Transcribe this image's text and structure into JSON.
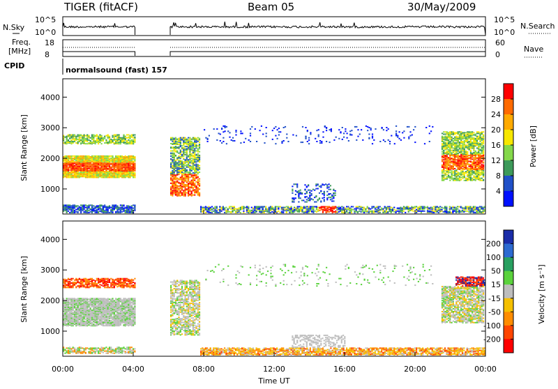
{
  "header": {
    "station": "TIGER (fitACF)",
    "beam": "Beam 05",
    "date": "30/May/2009"
  },
  "top_panel": {
    "left_label": "N.Sky",
    "right_label": "N.Search",
    "left_ticks": [
      "10^5",
      "10^0"
    ],
    "right_ticks": [
      "10^5",
      "10^0"
    ]
  },
  "freq_panel": {
    "left_label_line1": "Freq.",
    "left_label_line2": "[MHz]",
    "right_label": "Nave",
    "left_ticks": [
      "18",
      "8"
    ],
    "right_ticks": [
      "60",
      "0"
    ]
  },
  "cpid": {
    "label": "CPID",
    "value": "normalsound (fast) 157"
  },
  "chart_data": [
    {
      "type": "heatmap",
      "quantity": "Power",
      "ylabel": "Slant Range [km]",
      "xlabel": "",
      "ylim": [
        180,
        4600
      ],
      "xlim": [
        0,
        24
      ],
      "yticks": [
        "1000",
        "2000",
        "3000",
        "4000"
      ],
      "colorbar": {
        "label": "Power [dB]",
        "ticks": [
          "28",
          "24",
          "20",
          "16",
          "12",
          "8",
          "4"
        ],
        "colors": [
          "#ff0000",
          "#ff6a00",
          "#ffaa00",
          "#f7e700",
          "#84d84a",
          "#3d9a5a",
          "#2050c8",
          "#0010ff"
        ]
      },
      "data_gap_hours": [
        4.1,
        6.1
      ]
    },
    {
      "type": "heatmap",
      "quantity": "Velocity",
      "ylabel": "Slant Range [km]",
      "xlabel": "Time UT",
      "ylim": [
        180,
        4600
      ],
      "xlim": [
        0,
        24
      ],
      "yticks": [
        "1000",
        "2000",
        "3000",
        "4000"
      ],
      "xticks": [
        "00:00",
        "04:00",
        "08:00",
        "12:00",
        "16:00",
        "20:00",
        "00:00"
      ],
      "colorbar": {
        "label": "Velocity [m s⁻¹]",
        "ticks": [
          "200",
          "100",
          "50",
          "15",
          "-15",
          "-50",
          "-100",
          "-200"
        ],
        "colors": [
          "#1a2ca8",
          "#2c6ad0",
          "#28a060",
          "#5ad23c",
          "#bdbdbd",
          "#f5c000",
          "#ff8c00",
          "#ff4500",
          "#ff0000"
        ]
      },
      "data_gap_hours": [
        4.1,
        6.1
      ]
    }
  ]
}
